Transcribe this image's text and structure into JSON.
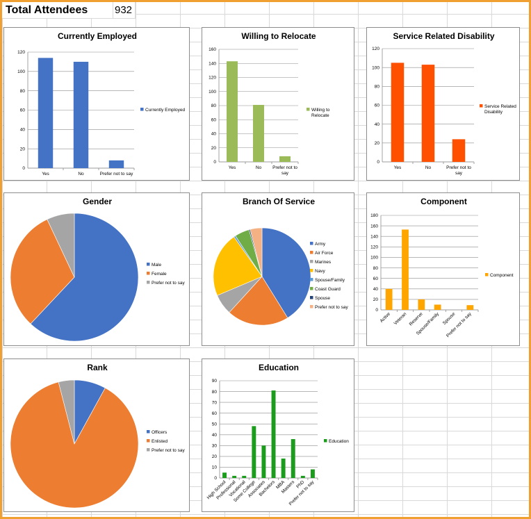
{
  "header": {
    "total_label": "Total Attendees",
    "total_value": "932"
  },
  "chart_data": [
    {
      "id": "employed",
      "type": "bar",
      "title": "Currently Employed",
      "categories": [
        "Yes",
        "No",
        "Prefer not to say"
      ],
      "series": [
        {
          "name": "Currently Employed",
          "values": [
            114,
            110,
            8
          ]
        }
      ],
      "ylim": [
        0,
        120
      ],
      "yticks": [
        0,
        20,
        40,
        60,
        80,
        100,
        120
      ],
      "color": "#4472c4",
      "grid": true,
      "legend": "right"
    },
    {
      "id": "relocate",
      "type": "bar",
      "title": "Willing to Relocate",
      "categories": [
        "Yes",
        "No",
        "Prefer not to say"
      ],
      "series": [
        {
          "name": "Willing to Relocate",
          "values": [
            143,
            81,
            8
          ]
        }
      ],
      "ylim": [
        0,
        160
      ],
      "yticks": [
        0,
        20,
        40,
        60,
        80,
        100,
        120,
        140,
        160
      ],
      "color": "#9bbb59",
      "grid": true,
      "legend": "right"
    },
    {
      "id": "disability",
      "type": "bar",
      "title": "Service Related Disability",
      "categories": [
        "Yes",
        "No",
        "Prefer not to say"
      ],
      "series": [
        {
          "name": "Service Related Disability",
          "values": [
            105,
            103,
            24
          ]
        }
      ],
      "ylim": [
        0,
        120
      ],
      "yticks": [
        0,
        20,
        40,
        60,
        80,
        100,
        120
      ],
      "color": "#ff5000",
      "grid": true,
      "legend": "right"
    },
    {
      "id": "gender",
      "type": "pie",
      "title": "Gender",
      "labels": [
        "Male",
        "Female",
        "Prefer not to say"
      ],
      "values": [
        62,
        31,
        7
      ],
      "colors": [
        "#4472c4",
        "#ed7d31",
        "#a5a5a5"
      ],
      "legend": "right"
    },
    {
      "id": "branch",
      "type": "pie",
      "title": "Branch Of Service",
      "labels": [
        "Army",
        "Air Force",
        "Marines",
        "Navy",
        "Spouse/Family",
        "Coast Guard",
        "Spouse",
        "Prefer not to say"
      ],
      "values": [
        42,
        21,
        7,
        22,
        0.6,
        5,
        0.4,
        4
      ],
      "colors": [
        "#4472c4",
        "#ed7d31",
        "#a5a5a5",
        "#ffc000",
        "#5b9bd5",
        "#70ad47",
        "#264478",
        "#f4b183"
      ],
      "legend": "right"
    },
    {
      "id": "component",
      "type": "bar",
      "title": "Component",
      "categories": [
        "Active",
        "Veteran",
        "Reserve",
        "Spouse/Family",
        "Spouse",
        "Prefer not to say"
      ],
      "series": [
        {
          "name": "Component",
          "values": [
            40,
            153,
            20,
            10,
            0,
            9
          ]
        }
      ],
      "ylim": [
        0,
        180
      ],
      "yticks": [
        0,
        20,
        40,
        60,
        80,
        100,
        120,
        140,
        160,
        180
      ],
      "color": "#ffa500",
      "grid": true,
      "legend": "right",
      "rotate_labels": true
    },
    {
      "id": "rank",
      "type": "pie",
      "title": "Rank",
      "labels": [
        "Officers",
        "Enlisted",
        "Prefer not to say"
      ],
      "values": [
        8,
        88,
        4
      ],
      "colors": [
        "#4472c4",
        "#ed7d31",
        "#a5a5a5"
      ],
      "legend": "right"
    },
    {
      "id": "education",
      "type": "bar",
      "title": "Education",
      "categories": [
        "High School",
        "Professional",
        "Vocational",
        "Some College",
        "Associates",
        "Bachelors",
        "MBA",
        "Masters",
        "PhD",
        "Prefer not to say"
      ],
      "series": [
        {
          "name": "Education",
          "values": [
            5,
            2,
            2,
            48,
            30,
            81,
            18,
            36,
            2,
            8
          ]
        }
      ],
      "ylim": [
        0,
        90
      ],
      "yticks": [
        0,
        10,
        20,
        30,
        40,
        50,
        60,
        70,
        80,
        90
      ],
      "color": "#1c9c1c",
      "grid": true,
      "legend": "right",
      "rotate_labels": true
    }
  ]
}
